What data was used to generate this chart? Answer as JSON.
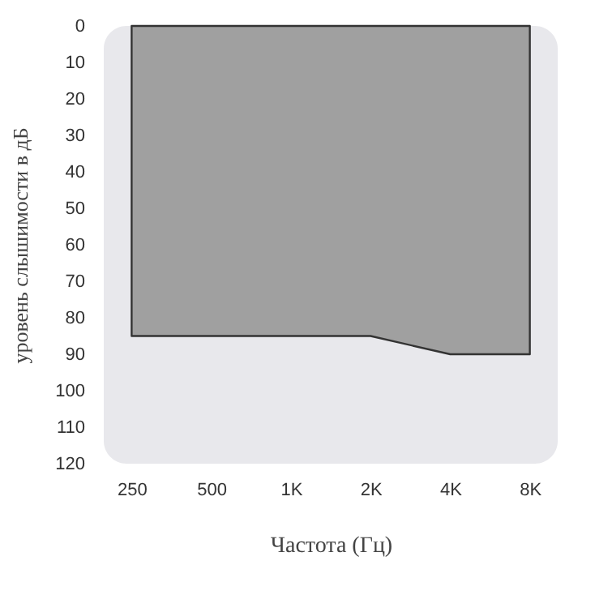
{
  "chart_data": {
    "type": "area",
    "xlabel": "Частота (Гц)",
    "ylabel": "уровень слышимости в дБ",
    "categories": [
      "250",
      "500",
      "1K",
      "2K",
      "4K",
      "8K"
    ],
    "series": [
      {
        "color": "#a0a0a0",
        "values": [
          85,
          85,
          85,
          85,
          90,
          90
        ]
      }
    ],
    "ylim": [
      120,
      0
    ],
    "yticks": [
      0,
      10,
      20,
      30,
      40,
      50,
      60,
      70,
      80,
      90,
      100,
      110,
      120
    ],
    "grid": false
  }
}
